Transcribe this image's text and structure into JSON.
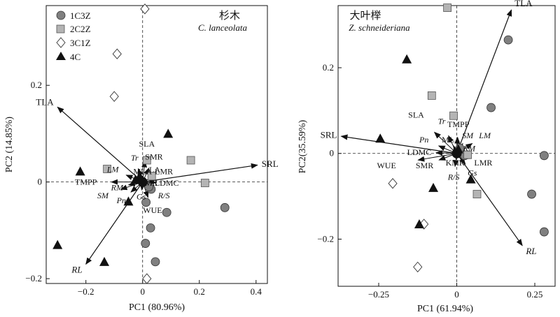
{
  "chart_data": [
    {
      "type": "scatter",
      "id": "left",
      "title": "杉木",
      "subtitle": "C. lanceolata",
      "xlabel": "PC1 (80.96%)",
      "ylabel": "PC2 (14.85%)",
      "xlim": [
        -0.34,
        0.44
      ],
      "ylim": [
        -0.21,
        0.365
      ],
      "xticks": [
        -0.2,
        0,
        0.2,
        0.4
      ],
      "yticks": [
        -0.2,
        0,
        0.2
      ],
      "xtick_labels": [
        "−0.2",
        "0",
        "0.2",
        "0.4"
      ],
      "ytick_labels": [
        "−0.2",
        "0",
        "0.2"
      ],
      "legend": {
        "position": "top-left",
        "entries": [
          {
            "label": "1C3Z",
            "marker": "circle"
          },
          {
            "label": "2C2Z",
            "marker": "square"
          },
          {
            "label": "3C1Z",
            "marker": "diamond"
          },
          {
            "label": "4C",
            "marker": "triangle"
          }
        ]
      },
      "series": [
        {
          "name": "1C3Z",
          "marker": "circle",
          "points": [
            [
              0.29,
              -0.053
            ],
            [
              0.085,
              -0.063
            ],
            [
              0.028,
              -0.095
            ],
            [
              0.01,
              -0.127
            ],
            [
              0.045,
              -0.165
            ],
            [
              0.012,
              -0.042
            ],
            [
              0.03,
              -0.015
            ],
            [
              0.022,
              -0.01
            ]
          ]
        },
        {
          "name": "2C2Z",
          "marker": "square",
          "points": [
            [
              -0.125,
              0.027
            ],
            [
              0.17,
              0.045
            ],
            [
              0.22,
              -0.002
            ],
            [
              0.015,
              0.045
            ],
            [
              0.032,
              0.012
            ]
          ]
        },
        {
          "name": "3C1Z",
          "marker": "diamond",
          "points": [
            [
              0.008,
              0.358
            ],
            [
              -0.09,
              0.265
            ],
            [
              -0.1,
              0.177
            ],
            [
              0.015,
              -0.2
            ]
          ]
        },
        {
          "name": "4C",
          "marker": "triangle",
          "points": [
            [
              0.09,
              0.1
            ],
            [
              -0.22,
              0.022
            ],
            [
              -0.05,
              -0.04
            ],
            [
              -0.3,
              -0.13
            ],
            [
              -0.135,
              -0.165
            ],
            [
              -0.01,
              0.012
            ],
            [
              -0.025,
              0.005
            ]
          ]
        }
      ],
      "loadings": [
        {
          "name": "TLA",
          "x": -0.3,
          "y": 0.155,
          "italic": false
        },
        {
          "name": "SRL",
          "x": 0.405,
          "y": 0.035,
          "italic": false
        },
        {
          "name": "RL",
          "x": -0.2,
          "y": -0.17,
          "italic": true
        }
      ],
      "vector_labels": [
        {
          "text": "SLA",
          "x": 0.015,
          "y": 0.079,
          "italic": false
        },
        {
          "text": "Tr",
          "x": -0.028,
          "y": 0.05,
          "italic": true
        },
        {
          "text": "SMR",
          "x": 0.04,
          "y": 0.052,
          "italic": false
        },
        {
          "text": "LM",
          "x": -0.105,
          "y": 0.026,
          "italic": true
        },
        {
          "text": "MLA",
          "x": 0.0,
          "y": 0.022,
          "italic": false
        },
        {
          "text": "LMR",
          "x": 0.075,
          "y": 0.022,
          "italic": false
        },
        {
          "text": "TMPP",
          "x": -0.2,
          "y": 0.0,
          "italic": false
        },
        {
          "text": "RM",
          "x": -0.09,
          "y": -0.011,
          "italic": true
        },
        {
          "text": "KMR",
          "x": 0.02,
          "y": -0.002,
          "italic": false
        },
        {
          "text": "LDMC",
          "x": 0.085,
          "y": -0.002,
          "italic": false
        },
        {
          "text": "SM",
          "x": -0.14,
          "y": -0.028,
          "italic": true
        },
        {
          "text": "Gs",
          "x": -0.005,
          "y": -0.03,
          "italic": true
        },
        {
          "text": "R/S",
          "x": 0.075,
          "y": -0.028,
          "italic": true
        },
        {
          "text": "Pn",
          "x": -0.075,
          "y": -0.038,
          "italic": true
        },
        {
          "text": "WUE",
          "x": 0.035,
          "y": -0.058,
          "italic": false
        }
      ],
      "center_label": "LA",
      "grid": false
    },
    {
      "type": "scatter",
      "id": "right",
      "title": "大叶榉",
      "subtitle": "Z. schneideriana",
      "xlabel": "PC1 (61.94%)",
      "ylabel": "PC2(35.59%)",
      "xlim": [
        -0.38,
        0.315
      ],
      "ylim": [
        -0.31,
        0.345
      ],
      "xticks": [
        -0.25,
        0,
        0.25
      ],
      "yticks": [
        -0.2,
        0,
        0.2
      ],
      "xtick_labels": [
        "−0.25",
        "0",
        "0.25"
      ],
      "ytick_labels": [
        "−0.2",
        "0",
        "0.2"
      ],
      "series": [
        {
          "name": "1C3Z",
          "marker": "circle",
          "points": [
            [
              0.165,
              0.265
            ],
            [
              0.11,
              0.107
            ],
            [
              0.28,
              -0.005
            ],
            [
              0.24,
              -0.095
            ],
            [
              0.28,
              -0.183
            ],
            [
              0.01,
              0.012
            ],
            [
              0.025,
              -0.005
            ]
          ]
        },
        {
          "name": "2C2Z",
          "marker": "square",
          "points": [
            [
              -0.03,
              0.34
            ],
            [
              -0.08,
              0.135
            ],
            [
              -0.01,
              0.088
            ],
            [
              0.065,
              -0.095
            ],
            [
              0.035,
              -0.003
            ]
          ]
        },
        {
          "name": "3C1Z",
          "marker": "diamond",
          "points": [
            [
              -0.205,
              -0.07
            ],
            [
              -0.105,
              -0.165
            ],
            [
              -0.125,
              -0.265
            ]
          ]
        },
        {
          "name": "4C",
          "marker": "triangle",
          "points": [
            [
              -0.16,
              0.22
            ],
            [
              -0.245,
              0.035
            ],
            [
              -0.075,
              -0.08
            ],
            [
              0.045,
              -0.06
            ],
            [
              -0.12,
              -0.165
            ],
            [
              0.005,
              0.01
            ]
          ]
        }
      ],
      "loadings": [
        {
          "name": "TLA",
          "x": 0.175,
          "y": 0.335,
          "italic": false
        },
        {
          "name": "SRL",
          "x": -0.37,
          "y": 0.04,
          "italic": false
        },
        {
          "name": "RL",
          "x": 0.21,
          "y": -0.215,
          "italic": true
        }
      ],
      "vector_labels": [
        {
          "text": "SLA",
          "x": -0.13,
          "y": 0.09,
          "italic": false
        },
        {
          "text": "Tr",
          "x": -0.048,
          "y": 0.075,
          "italic": true
        },
        {
          "text": "TMPP",
          "x": 0.005,
          "y": 0.068,
          "italic": false
        },
        {
          "text": "Pn",
          "x": -0.105,
          "y": 0.032,
          "italic": true
        },
        {
          "text": "MLA",
          "x": -0.018,
          "y": 0.032,
          "italic": false
        },
        {
          "text": "SM",
          "x": 0.035,
          "y": 0.042,
          "italic": true
        },
        {
          "text": "LM",
          "x": 0.09,
          "y": 0.042,
          "italic": true
        },
        {
          "text": "RM",
          "x": 0.04,
          "y": 0.012,
          "italic": true
        },
        {
          "text": "LDMC",
          "x": -0.12,
          "y": 0.003,
          "italic": false
        },
        {
          "text": "WUE",
          "x": -0.225,
          "y": -0.028,
          "italic": false
        },
        {
          "text": "SMR",
          "x": -0.103,
          "y": -0.028,
          "italic": false
        },
        {
          "text": "KMR",
          "x": -0.005,
          "y": -0.022,
          "italic": false
        },
        {
          "text": "LMR",
          "x": 0.085,
          "y": -0.022,
          "italic": false
        },
        {
          "text": "R/S",
          "x": -0.01,
          "y": -0.055,
          "italic": true
        },
        {
          "text": "Gs",
          "x": 0.05,
          "y": -0.045,
          "italic": true
        }
      ],
      "grid": false
    }
  ]
}
